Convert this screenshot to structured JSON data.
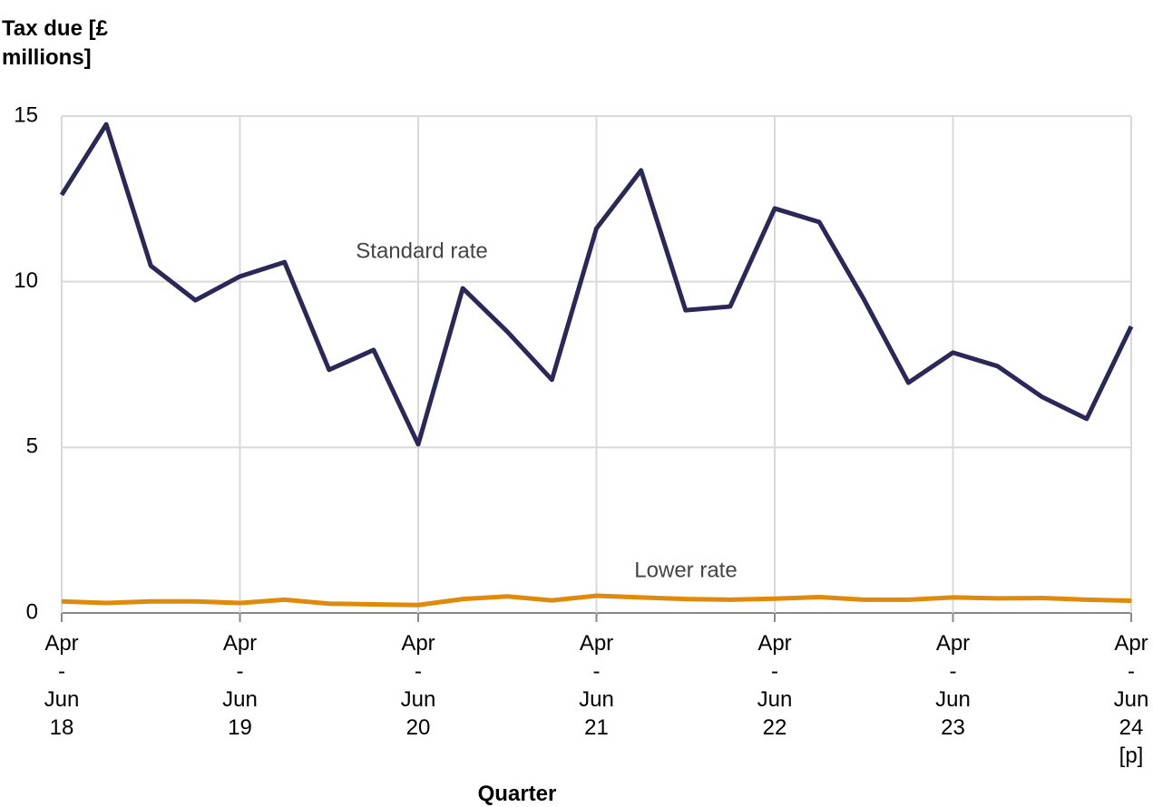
{
  "chart_data": {
    "type": "line",
    "ylabel": "Tax due [£ millions]",
    "xlabel": "Quarter",
    "categories": [
      "Apr - Jun 18",
      null,
      null,
      null,
      "Apr - Jun 19",
      null,
      null,
      null,
      "Apr - Jun 20",
      null,
      null,
      null,
      "Apr - Jun 21",
      null,
      null,
      null,
      "Apr - Jun 22",
      null,
      null,
      null,
      "Apr - Jun 23",
      null,
      null,
      null,
      "Apr - Jun 24 [p]"
    ],
    "series": [
      {
        "name": "Standard rate",
        "color": "#2a2859",
        "values": [
          12.62,
          14.75,
          10.48,
          9.44,
          10.16,
          10.59,
          7.34,
          7.94,
          5.09,
          9.8,
          8.49,
          7.04,
          11.61,
          13.36,
          9.14,
          9.25,
          12.21,
          11.8,
          9.47,
          6.95,
          7.86,
          7.45,
          6.52,
          5.86,
          8.65
        ]
      },
      {
        "name": "Lower rate",
        "color": "#df8a0a",
        "values": [
          0.35,
          0.3,
          0.35,
          0.35,
          0.3,
          0.4,
          0.28,
          0.26,
          0.24,
          0.42,
          0.5,
          0.38,
          0.52,
          0.47,
          0.42,
          0.4,
          0.43,
          0.48,
          0.4,
          0.4,
          0.47,
          0.44,
          0.45,
          0.4,
          0.37
        ]
      }
    ],
    "ylim": [
      0,
      15
    ],
    "yticks": [
      0,
      5,
      10,
      15
    ],
    "grid": true
  }
}
